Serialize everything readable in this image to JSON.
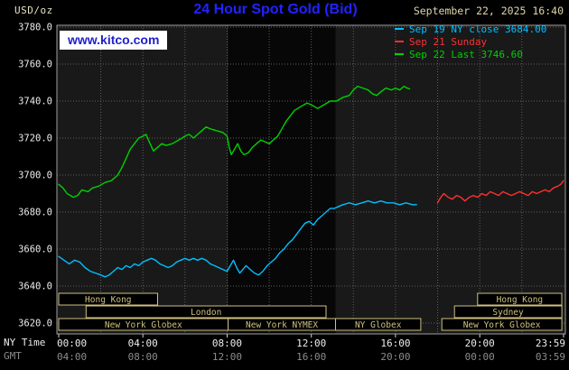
{
  "header": {
    "units_label": "USD/oz",
    "title": "24 Hour Spot Gold (Bid)",
    "datetime": "September 22, 2025 16:40",
    "watermark": "www.kitco.com"
  },
  "legend": {
    "position": "top-right",
    "items": [
      {
        "text": "Sep 19 NY close 3684.00",
        "color": "#00bfff"
      },
      {
        "text": "Sep 21 Sunday",
        "color": "#ff3030"
      },
      {
        "text": "Sep 22 Last 3746.60",
        "color": "#00d000"
      }
    ]
  },
  "footer": {
    "ny_time_label": "NY Time",
    "gmt_label": "GMT"
  },
  "colors": {
    "background": "#000000",
    "title_text": "#2222ff",
    "datetime_text": "#ddd5ac",
    "units_text": "#e6e0c2",
    "watermark_text": "#2020cc",
    "ny_labels": "#ededed",
    "gmt_labels": "#8c8c8c",
    "sessions": "#cfc080"
  },
  "chart_data": {
    "type": "line",
    "title": "24 Hour Spot Gold (Bid)",
    "ylabel": "USD/oz",
    "xlabel_rows": [
      "NY Time",
      "GMT"
    ],
    "ylim": [
      3620,
      3780
    ],
    "grid": true,
    "legend_position": "top-right",
    "plot_bg": "#191919",
    "band_color": "#070707",
    "grid_color": "#606060",
    "border_color": "#a0a0a0",
    "prev_close": 3684.0,
    "last": 3746.6,
    "shaded_band_hours": [
      8.05,
      13.15
    ],
    "y_ticks": [
      {
        "v": 3780,
        "label": "3780.0"
      },
      {
        "v": 3760,
        "label": "3760.0"
      },
      {
        "v": 3740,
        "label": "3740.0"
      },
      {
        "v": 3720,
        "label": "3720.0"
      },
      {
        "v": 3700,
        "label": "3700.0"
      },
      {
        "v": 3680,
        "label": "3680.0"
      },
      {
        "v": 3660,
        "label": "3660.0"
      },
      {
        "v": 3640,
        "label": "3640.0"
      },
      {
        "v": 3620,
        "label": "3620.0"
      }
    ],
    "x_ticks": [
      {
        "hour": 0,
        "ny": "00:00",
        "gmt": "04:00"
      },
      {
        "hour": 4,
        "ny": "04:00",
        "gmt": "08:00"
      },
      {
        "hour": 8,
        "ny": "08:00",
        "gmt": "12:00"
      },
      {
        "hour": 12,
        "ny": "12:00",
        "gmt": "16:00"
      },
      {
        "hour": 16,
        "ny": "16:00",
        "gmt": "20:00"
      },
      {
        "hour": 20,
        "ny": "20:00",
        "gmt": "00:00"
      },
      {
        "hour": 23.983,
        "ny": "23:59",
        "gmt": "03:59"
      }
    ],
    "series": [
      {
        "id": "sep19",
        "name": "Sep 19 NY close",
        "color": "#00bfff",
        "points": [
          [
            0,
            3656
          ],
          [
            0.25,
            3654
          ],
          [
            0.5,
            3652
          ],
          [
            0.75,
            3654
          ],
          [
            1.0,
            3653
          ],
          [
            1.25,
            3650
          ],
          [
            1.5,
            3648
          ],
          [
            1.75,
            3647
          ],
          [
            2.0,
            3646
          ],
          [
            2.2,
            3645
          ],
          [
            2.4,
            3646
          ],
          [
            2.6,
            3648
          ],
          [
            2.8,
            3650
          ],
          [
            3.0,
            3649
          ],
          [
            3.2,
            3651
          ],
          [
            3.4,
            3650
          ],
          [
            3.6,
            3652
          ],
          [
            3.8,
            3651
          ],
          [
            4.0,
            3653
          ],
          [
            4.2,
            3654
          ],
          [
            4.4,
            3655
          ],
          [
            4.6,
            3654
          ],
          [
            4.8,
            3652
          ],
          [
            5.0,
            3651
          ],
          [
            5.2,
            3650
          ],
          [
            5.4,
            3651
          ],
          [
            5.6,
            3653
          ],
          [
            5.8,
            3654
          ],
          [
            6.0,
            3655
          ],
          [
            6.2,
            3654
          ],
          [
            6.4,
            3655
          ],
          [
            6.6,
            3654
          ],
          [
            6.8,
            3655
          ],
          [
            7.0,
            3654
          ],
          [
            7.2,
            3652
          ],
          [
            7.4,
            3651
          ],
          [
            7.6,
            3650
          ],
          [
            7.8,
            3649
          ],
          [
            8.0,
            3648
          ],
          [
            8.15,
            3651
          ],
          [
            8.3,
            3654
          ],
          [
            8.45,
            3650
          ],
          [
            8.6,
            3647
          ],
          [
            8.75,
            3649
          ],
          [
            8.9,
            3651
          ],
          [
            9.1,
            3649
          ],
          [
            9.3,
            3647
          ],
          [
            9.5,
            3646
          ],
          [
            9.7,
            3648
          ],
          [
            9.9,
            3651
          ],
          [
            10.1,
            3653
          ],
          [
            10.3,
            3655
          ],
          [
            10.5,
            3658
          ],
          [
            10.7,
            3660
          ],
          [
            10.9,
            3663
          ],
          [
            11.1,
            3665
          ],
          [
            11.3,
            3668
          ],
          [
            11.5,
            3671
          ],
          [
            11.7,
            3674
          ],
          [
            11.9,
            3675
          ],
          [
            12.1,
            3673
          ],
          [
            12.3,
            3676
          ],
          [
            12.5,
            3678
          ],
          [
            12.7,
            3680
          ],
          [
            12.9,
            3682
          ],
          [
            13.1,
            3682
          ],
          [
            13.3,
            3683
          ],
          [
            13.5,
            3684
          ],
          [
            13.8,
            3685
          ],
          [
            14.1,
            3684
          ],
          [
            14.4,
            3685
          ],
          [
            14.7,
            3686
          ],
          [
            15.0,
            3685
          ],
          [
            15.3,
            3686
          ],
          [
            15.6,
            3685
          ],
          [
            15.9,
            3685
          ],
          [
            16.2,
            3684
          ],
          [
            16.5,
            3685
          ],
          [
            16.8,
            3684
          ],
          [
            17.0,
            3684
          ]
        ]
      },
      {
        "id": "sep21",
        "name": "Sep 21 Sunday",
        "color": "#ff3030",
        "points": [
          [
            18.0,
            3685
          ],
          [
            18.15,
            3688
          ],
          [
            18.3,
            3690
          ],
          [
            18.5,
            3688
          ],
          [
            18.7,
            3687
          ],
          [
            18.9,
            3689
          ],
          [
            19.1,
            3688
          ],
          [
            19.3,
            3686
          ],
          [
            19.5,
            3688
          ],
          [
            19.7,
            3689
          ],
          [
            19.9,
            3688
          ],
          [
            20.1,
            3690
          ],
          [
            20.3,
            3689
          ],
          [
            20.5,
            3691
          ],
          [
            20.7,
            3690
          ],
          [
            20.9,
            3689
          ],
          [
            21.1,
            3691
          ],
          [
            21.3,
            3690
          ],
          [
            21.5,
            3689
          ],
          [
            21.7,
            3690
          ],
          [
            21.9,
            3691
          ],
          [
            22.1,
            3690
          ],
          [
            22.3,
            3689
          ],
          [
            22.5,
            3691
          ],
          [
            22.7,
            3690
          ],
          [
            22.9,
            3691
          ],
          [
            23.1,
            3692
          ],
          [
            23.3,
            3691
          ],
          [
            23.5,
            3693
          ],
          [
            23.7,
            3694
          ],
          [
            23.85,
            3695
          ],
          [
            23.98,
            3697
          ]
        ]
      },
      {
        "id": "sep22",
        "name": "Sep 22 Last",
        "color": "#00d000",
        "points": [
          [
            0,
            3695
          ],
          [
            0.2,
            3693
          ],
          [
            0.4,
            3690
          ],
          [
            0.7,
            3688
          ],
          [
            0.9,
            3689
          ],
          [
            1.1,
            3692
          ],
          [
            1.4,
            3691
          ],
          [
            1.6,
            3693
          ],
          [
            1.9,
            3694
          ],
          [
            2.2,
            3696
          ],
          [
            2.5,
            3697
          ],
          [
            2.8,
            3700
          ],
          [
            3.0,
            3704
          ],
          [
            3.2,
            3709
          ],
          [
            3.4,
            3714
          ],
          [
            3.6,
            3717
          ],
          [
            3.8,
            3720
          ],
          [
            4.0,
            3721
          ],
          [
            4.15,
            3722
          ],
          [
            4.3,
            3718
          ],
          [
            4.5,
            3713
          ],
          [
            4.7,
            3715
          ],
          [
            4.9,
            3717
          ],
          [
            5.1,
            3716
          ],
          [
            5.4,
            3717
          ],
          [
            5.7,
            3719
          ],
          [
            6.0,
            3721
          ],
          [
            6.2,
            3722
          ],
          [
            6.4,
            3720
          ],
          [
            6.6,
            3722
          ],
          [
            6.8,
            3724
          ],
          [
            7.0,
            3726
          ],
          [
            7.2,
            3725
          ],
          [
            7.5,
            3724
          ],
          [
            7.8,
            3723
          ],
          [
            8.0,
            3721
          ],
          [
            8.1,
            3715
          ],
          [
            8.2,
            3711
          ],
          [
            8.35,
            3714
          ],
          [
            8.5,
            3717
          ],
          [
            8.65,
            3713
          ],
          [
            8.8,
            3711
          ],
          [
            9.0,
            3712
          ],
          [
            9.2,
            3715
          ],
          [
            9.4,
            3717
          ],
          [
            9.6,
            3719
          ],
          [
            9.8,
            3718
          ],
          [
            10.0,
            3717
          ],
          [
            10.2,
            3719
          ],
          [
            10.4,
            3721
          ],
          [
            10.6,
            3725
          ],
          [
            10.8,
            3729
          ],
          [
            11.0,
            3732
          ],
          [
            11.2,
            3735
          ],
          [
            11.5,
            3737
          ],
          [
            11.8,
            3739
          ],
          [
            12.0,
            3738
          ],
          [
            12.3,
            3736
          ],
          [
            12.6,
            3738
          ],
          [
            12.9,
            3740
          ],
          [
            13.2,
            3740
          ],
          [
            13.5,
            3742
          ],
          [
            13.8,
            3743
          ],
          [
            14.0,
            3746
          ],
          [
            14.2,
            3748
          ],
          [
            14.45,
            3747
          ],
          [
            14.7,
            3746
          ],
          [
            14.9,
            3744
          ],
          [
            15.1,
            3743
          ],
          [
            15.3,
            3745
          ],
          [
            15.55,
            3747
          ],
          [
            15.8,
            3746
          ],
          [
            16.0,
            3747
          ],
          [
            16.2,
            3746
          ],
          [
            16.4,
            3748
          ],
          [
            16.55,
            3747
          ],
          [
            16.67,
            3746.6
          ]
        ]
      }
    ],
    "sessions": {
      "color": "#cfc080",
      "rows": [
        [
          {
            "label": "Hong Kong",
            "start": 0,
            "end": 4.7
          },
          {
            "label": "Hong Kong",
            "start": 19.9,
            "end": 23.9
          }
        ],
        [
          {
            "label": "London",
            "start": 1.3,
            "end": 12.7
          },
          {
            "label": "Sydney",
            "start": 18.8,
            "end": 23.9
          }
        ],
        [
          {
            "label": "New York Globex",
            "start": 0,
            "end": 8.05
          },
          {
            "label": "New York NYMEX",
            "start": 8.05,
            "end": 13.15
          },
          {
            "label": "NY Globex",
            "start": 13.15,
            "end": 17.2
          },
          {
            "label": "New York Globex",
            "start": 18.2,
            "end": 23.9
          }
        ]
      ]
    }
  }
}
